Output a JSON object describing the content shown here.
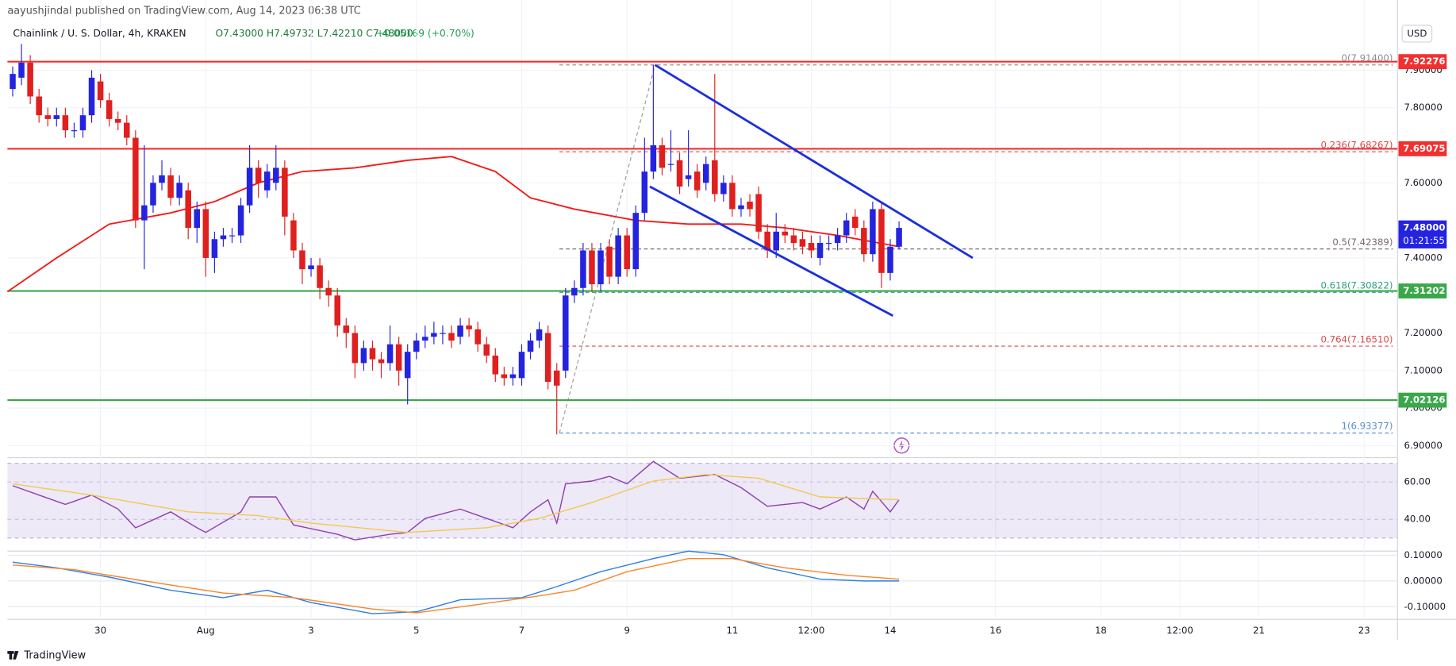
{
  "header": {
    "publisher": "aayushjindal published on TradingView.com, Aug 14, 2023 06:38 UTC",
    "symbol": "Chainlink / U. S. Dollar, 4h, KRAKEN",
    "ohlc": "O7.43000 H7.49732 L7.42210 C7.48000",
    "change": "+0.05169 (+0.70%)",
    "currency": "USD"
  },
  "footer": {
    "brand": "TradingView"
  },
  "chart_data": [
    {
      "type": "candlestick",
      "xlim": [
        -0.6,
        157.8
      ],
      "ylim": [
        6.868,
        8.067
      ],
      "yticks": [
        {
          "value": 7.9,
          "label": "7.90000"
        },
        {
          "value": 7.8,
          "label": "7.80000"
        },
        {
          "value": 7.6,
          "label": "7.60000"
        },
        {
          "value": 7.4,
          "label": "7.40000"
        },
        {
          "value": 7.2,
          "label": "7.20000"
        },
        {
          "value": 7.1,
          "label": "7.10000"
        },
        {
          "value": 7.0,
          "label": "7.00000"
        },
        {
          "value": 6.9,
          "label": "6.90000"
        }
      ],
      "xticks": [
        {
          "value": 10,
          "label": "30"
        },
        {
          "value": 22,
          "label": "Aug"
        },
        {
          "value": 34,
          "label": "3"
        },
        {
          "value": 46,
          "label": "5"
        },
        {
          "value": 58,
          "label": "7"
        },
        {
          "value": 70,
          "label": "9"
        },
        {
          "value": 82,
          "label": "11"
        },
        {
          "value": 91,
          "label": "12:00"
        },
        {
          "value": 100,
          "label": "14"
        },
        {
          "value": 112,
          "label": "16"
        },
        {
          "value": 124,
          "label": "18"
        },
        {
          "value": 133,
          "label": "12:00"
        },
        {
          "value": 142,
          "label": "21"
        },
        {
          "value": 154,
          "label": "23"
        }
      ],
      "grid": true,
      "up_color": "#2424e0",
      "down_color": "#e01f1f",
      "open": [
        7.85,
        7.88,
        7.92,
        7.83,
        7.78,
        7.77,
        7.78,
        7.74,
        7.74,
        7.78,
        7.87,
        7.82,
        7.77,
        7.76,
        7.72,
        7.5,
        7.54,
        7.6,
        7.62,
        7.56,
        7.58,
        7.48,
        7.53,
        7.4,
        7.45,
        7.46,
        7.46,
        7.54,
        7.64,
        7.58,
        7.6,
        7.64,
        7.5,
        7.42,
        7.37,
        7.38,
        7.32,
        7.3,
        7.22,
        7.2,
        7.12,
        7.16,
        7.13,
        7.12,
        7.17,
        7.08,
        7.15,
        7.18,
        7.19,
        7.2,
        7.2,
        7.19,
        7.22,
        7.21,
        7.17,
        7.14,
        7.09,
        7.08,
        7.08,
        7.15,
        7.18,
        7.2,
        7.1,
        7.1,
        7.3,
        7.32,
        7.42,
        7.33,
        7.43,
        7.35,
        7.46,
        7.37,
        7.52,
        7.63,
        7.7,
        7.65,
        7.66,
        7.61,
        7.63,
        7.6,
        7.66,
        7.57,
        7.6,
        7.53,
        7.55,
        7.57,
        7.47,
        7.42,
        7.47,
        7.46,
        7.45,
        7.44,
        7.4,
        7.44,
        7.44,
        7.46,
        7.51,
        7.48,
        7.41,
        7.53,
        7.36,
        7.43
      ],
      "high": [
        7.91,
        7.97,
        7.94,
        7.85,
        7.8,
        7.8,
        7.8,
        7.76,
        7.8,
        7.9,
        7.89,
        7.84,
        7.79,
        7.78,
        7.74,
        7.7,
        7.62,
        7.66,
        7.64,
        7.62,
        7.6,
        7.55,
        7.55,
        7.47,
        7.48,
        7.48,
        7.56,
        7.7,
        7.66,
        7.65,
        7.7,
        7.66,
        7.52,
        7.44,
        7.4,
        7.4,
        7.34,
        7.32,
        7.24,
        7.22,
        7.18,
        7.18,
        7.15,
        7.22,
        7.19,
        7.17,
        7.2,
        7.22,
        7.23,
        7.22,
        7.22,
        7.24,
        7.24,
        7.23,
        7.19,
        7.16,
        7.11,
        7.11,
        7.17,
        7.2,
        7.23,
        7.22,
        7.12,
        7.32,
        7.34,
        7.44,
        7.44,
        7.44,
        7.45,
        7.48,
        7.48,
        7.54,
        7.72,
        7.914,
        7.72,
        7.74,
        7.68,
        7.74,
        7.65,
        7.67,
        7.89,
        7.62,
        7.62,
        7.56,
        7.57,
        7.59,
        7.49,
        7.52,
        7.49,
        7.48,
        7.47,
        7.46,
        7.46,
        7.46,
        7.48,
        7.52,
        7.53,
        7.5,
        7.55,
        7.55,
        7.45,
        7.49732
      ],
      "low": [
        7.83,
        7.86,
        7.81,
        7.76,
        7.75,
        7.75,
        7.72,
        7.72,
        7.72,
        7.76,
        7.8,
        7.75,
        7.74,
        7.7,
        7.48,
        7.37,
        7.52,
        7.58,
        7.54,
        7.54,
        7.45,
        7.44,
        7.35,
        7.36,
        7.43,
        7.44,
        7.44,
        7.52,
        7.56,
        7.56,
        7.58,
        7.46,
        7.4,
        7.33,
        7.35,
        7.29,
        7.27,
        7.19,
        7.16,
        7.08,
        7.1,
        7.1,
        7.08,
        7.1,
        7.06,
        7.01,
        7.13,
        7.16,
        7.17,
        7.17,
        7.16,
        7.17,
        7.19,
        7.15,
        7.12,
        7.07,
        7.06,
        7.06,
        7.06,
        7.13,
        7.16,
        7.05,
        6.93,
        7.08,
        7.28,
        7.3,
        7.31,
        7.31,
        7.33,
        7.33,
        7.35,
        7.35,
        7.5,
        7.61,
        7.62,
        7.63,
        7.57,
        7.59,
        7.56,
        7.58,
        7.55,
        7.55,
        7.51,
        7.51,
        7.51,
        7.45,
        7.4,
        7.4,
        7.44,
        7.42,
        7.41,
        7.4,
        7.38,
        7.42,
        7.42,
        7.44,
        7.46,
        7.39,
        7.39,
        7.32,
        7.34,
        7.4221
      ],
      "close": [
        7.89,
        7.92,
        7.83,
        7.78,
        7.77,
        7.78,
        7.74,
        7.74,
        7.78,
        7.88,
        7.82,
        7.77,
        7.76,
        7.72,
        7.5,
        7.54,
        7.6,
        7.62,
        7.56,
        7.6,
        7.48,
        7.53,
        7.4,
        7.45,
        7.46,
        7.46,
        7.54,
        7.64,
        7.6,
        7.63,
        7.64,
        7.51,
        7.42,
        7.37,
        7.38,
        7.32,
        7.3,
        7.22,
        7.2,
        7.12,
        7.16,
        7.13,
        7.12,
        7.17,
        7.1,
        7.15,
        7.18,
        7.19,
        7.2,
        7.2,
        7.18,
        7.22,
        7.21,
        7.17,
        7.14,
        7.09,
        7.08,
        7.09,
        7.15,
        7.18,
        7.21,
        7.07,
        7.06,
        7.3,
        7.32,
        7.42,
        7.33,
        7.42,
        7.35,
        7.46,
        7.37,
        7.52,
        7.63,
        7.7,
        7.64,
        7.65,
        7.59,
        7.62,
        7.58,
        7.65,
        7.57,
        7.6,
        7.53,
        7.54,
        7.53,
        7.47,
        7.42,
        7.47,
        7.46,
        7.44,
        7.43,
        7.42,
        7.44,
        7.44,
        7.46,
        7.5,
        7.48,
        7.41,
        7.53,
        7.36,
        7.43,
        7.48
      ],
      "moving_average": {
        "color": "#f21b1b",
        "x": [
          -0.6,
          5,
          11,
          18,
          23,
          28,
          33,
          39,
          45,
          50,
          55,
          59,
          64,
          71,
          77,
          83,
          88,
          94,
          101
        ],
        "values": [
          7.31,
          7.4,
          7.49,
          7.52,
          7.55,
          7.6,
          7.63,
          7.64,
          7.66,
          7.67,
          7.63,
          7.56,
          7.53,
          7.5,
          7.49,
          7.49,
          7.48,
          7.46,
          7.43
        ]
      },
      "levels": [
        {
          "value": 7.92276,
          "color": "#f23030"
        },
        {
          "value": 7.69075,
          "color": "#f23030"
        },
        {
          "value": 7.31202,
          "color": "#3aa84a"
        },
        {
          "value": 7.02126,
          "color": "#3aa84a"
        }
      ],
      "fibonacci": {
        "x_start": 62.3,
        "levels": [
          {
            "value": 7.914,
            "label": "0(7.91400)",
            "color": "#8c8c8c"
          },
          {
            "value": 7.68267,
            "label": "0.236(7.68267)",
            "color": "#e04848"
          },
          {
            "value": 7.42389,
            "label": "0.5(7.42389)",
            "color": "#7a6a6a"
          },
          {
            "value": 7.30822,
            "label": "0.618(7.30822)",
            "color": "#2f9e7e"
          },
          {
            "value": 7.1651,
            "label": "0.764(7.16510)",
            "color": "#e04848"
          },
          {
            "value": 6.93377,
            "label": "1(6.93377)",
            "color": "#5b8fd6"
          }
        ]
      },
      "fib_anchor": {
        "color": "#9a9a9a",
        "x": [
          62.3,
          73.2
        ],
        "values": [
          6.93377,
          7.914
        ]
      },
      "trend_lines": [
        {
          "color": "#1a2fe0",
          "x": [
            73.2,
            109.4
          ],
          "values": [
            7.914,
            7.4
          ]
        },
        {
          "color": "#1a2fe0",
          "x": [
            72.6,
            100.3
          ],
          "values": [
            7.59,
            7.246
          ]
        }
      ],
      "last_price": {
        "value": 7.48,
        "label": "7.48000",
        "countdown": "01:21:55",
        "color": "#2424e0"
      }
    },
    {
      "type": "line",
      "ylim": [
        23,
        73
      ],
      "yticks": [
        {
          "value": 60,
          "label": "60.00"
        },
        {
          "value": 40,
          "label": "40.00"
        }
      ],
      "band": [
        30,
        70
      ],
      "band_color": "#7e57c2",
      "series": [
        {
          "color": "#8e3fb0",
          "x": [
            0,
            3,
            6,
            9,
            12,
            14,
            18,
            21,
            22,
            26,
            27,
            30,
            32,
            37,
            39,
            43,
            45,
            47,
            51,
            54,
            57,
            59,
            61,
            62,
            63,
            66,
            68,
            70,
            73,
            76,
            80,
            83,
            86,
            90,
            92,
            95,
            97,
            98,
            100,
            101
          ],
          "values": [
            58,
            53,
            48,
            53,
            45.5,
            35.5,
            44,
            35.5,
            33,
            44,
            52,
            52,
            37,
            32,
            29,
            32,
            33,
            40.5,
            45.5,
            40.5,
            35.5,
            44,
            50.5,
            38,
            59,
            60.5,
            63,
            59,
            71,
            62,
            64,
            57,
            47,
            49,
            45.5,
            52,
            45.5,
            55,
            44,
            50.5
          ]
        },
        {
          "color": "#f2c94c",
          "x": [
            0,
            9,
            20,
            28,
            34,
            45,
            54,
            60,
            66,
            73,
            79,
            85,
            92,
            101
          ],
          "values": [
            59,
            53,
            44,
            42,
            38,
            33,
            35.5,
            40.5,
            49,
            60.5,
            64,
            62,
            52,
            50.5
          ]
        }
      ]
    },
    {
      "type": "line",
      "ylim": [
        -0.149,
        0.116
      ],
      "yticks": [
        {
          "value": 0.1,
          "label": "0.10000"
        },
        {
          "value": 0,
          "label": "0.00000"
        },
        {
          "value": -0.1,
          "label": "-0.10000"
        }
      ],
      "series": [
        {
          "color": "#2f7de1",
          "x": [
            0,
            5,
            11,
            18,
            24,
            29,
            34,
            41,
            46,
            51,
            58,
            62,
            67,
            73,
            77,
            81,
            86,
            92,
            97,
            101
          ],
          "values": [
            0.073,
            0.051,
            0.015,
            -0.036,
            -0.065,
            -0.036,
            -0.084,
            -0.127,
            -0.12,
            -0.073,
            -0.065,
            -0.022,
            0.036,
            0.087,
            0.116,
            0.102,
            0.051,
            0.007,
            0,
            0
          ]
        },
        {
          "color": "#f7862a",
          "x": [
            0,
            7,
            15,
            24,
            32,
            41,
            46,
            54,
            60,
            64,
            70,
            77,
            82,
            88,
            95,
            101
          ],
          "values": [
            0.062,
            0.044,
            0,
            -0.047,
            -0.065,
            -0.109,
            -0.124,
            -0.087,
            -0.058,
            -0.036,
            0.036,
            0.087,
            0.087,
            0.051,
            0.022,
            0.007
          ]
        }
      ]
    }
  ]
}
